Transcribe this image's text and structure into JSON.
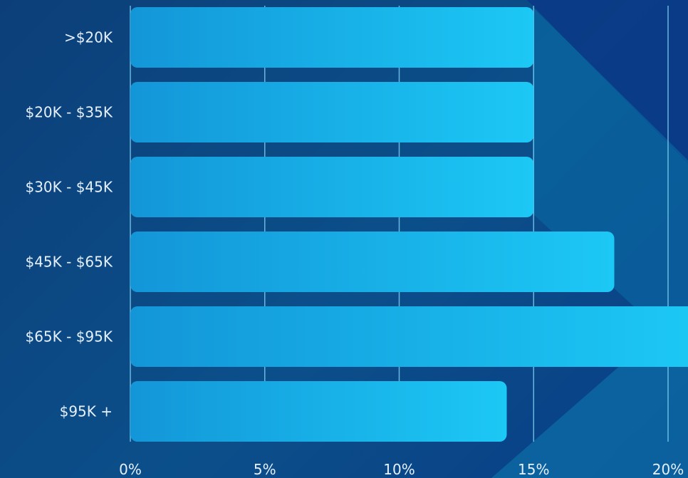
{
  "colors": {
    "bar_start": "#1396d8",
    "bar_end": "#1cc8f5",
    "grid": "#7fd4f5",
    "text": "#e6f1ff",
    "background": "#0c3f79"
  },
  "chart_data": {
    "type": "bar",
    "orientation": "horizontal",
    "categories": [
      ">$20K",
      "$20K - $35K",
      "$30K - $45K",
      "$45K - $65K",
      "$65K - $95K",
      "$95K +"
    ],
    "values": [
      15,
      15,
      15,
      18,
      21,
      14
    ],
    "xlim": [
      0,
      20.5
    ],
    "xticks": [
      0,
      5,
      10,
      15,
      20
    ],
    "xtick_labels": [
      "0%",
      "5%",
      "10%",
      "15%",
      "20%"
    ],
    "grid": true,
    "title": "",
    "xlabel": "",
    "ylabel": ""
  }
}
